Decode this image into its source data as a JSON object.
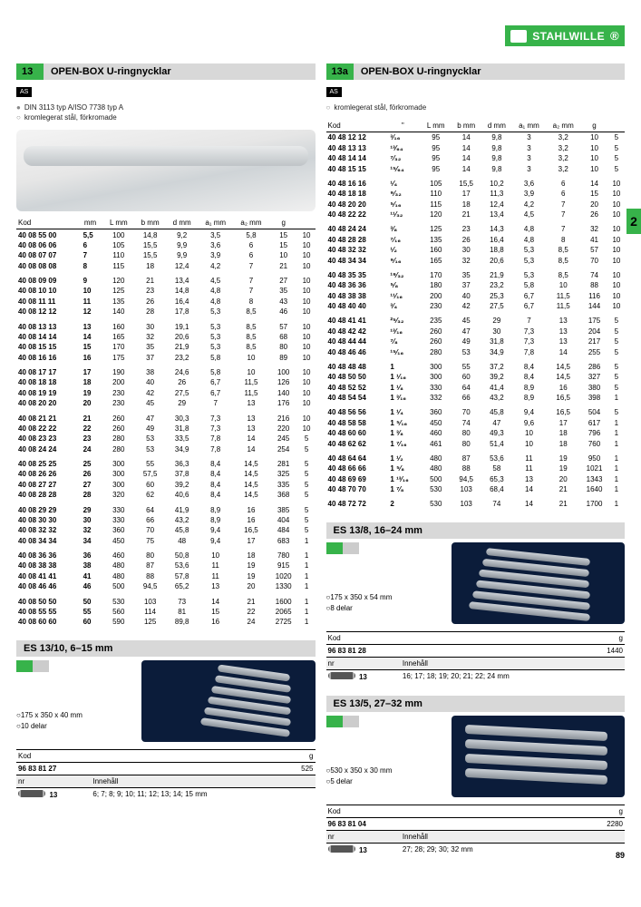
{
  "page_number": "89",
  "tab": "2",
  "brand": "STAHLWILLE",
  "left": {
    "tag": "13",
    "title": "OPEN-BOX U-ringnycklar",
    "notes": [
      "DIN 3113 typ A/ISO 7738 typ A",
      "kromlegerat stål, förkromade"
    ],
    "headers": [
      "Kod",
      "mm",
      "L mm",
      "b mm",
      "d mm",
      "a₁ mm",
      "a₂ mm",
      "g",
      ""
    ],
    "groups": [
      [
        [
          "40 08 55 00",
          "5,5",
          "100",
          "14,8",
          "9,2",
          "3,5",
          "5,8",
          "15",
          "10"
        ],
        [
          "40 08 06 06",
          "6",
          "105",
          "15,5",
          "9,9",
          "3,6",
          "6",
          "15",
          "10"
        ],
        [
          "40 08 07 07",
          "7",
          "110",
          "15,5",
          "9,9",
          "3,9",
          "6",
          "10",
          "10"
        ],
        [
          "40 08 08 08",
          "8",
          "115",
          "18",
          "12,4",
          "4,2",
          "7",
          "21",
          "10"
        ]
      ],
      [
        [
          "40 08 09 09",
          "9",
          "120",
          "21",
          "13,4",
          "4,5",
          "7",
          "27",
          "10"
        ],
        [
          "40 08 10 10",
          "10",
          "125",
          "23",
          "14,8",
          "4,8",
          "7",
          "35",
          "10"
        ],
        [
          "40 08 11 11",
          "11",
          "135",
          "26",
          "16,4",
          "4,8",
          "8",
          "43",
          "10"
        ],
        [
          "40 08 12 12",
          "12",
          "140",
          "28",
          "17,8",
          "5,3",
          "8,5",
          "46",
          "10"
        ]
      ],
      [
        [
          "40 08 13 13",
          "13",
          "160",
          "30",
          "19,1",
          "5,3",
          "8,5",
          "57",
          "10"
        ],
        [
          "40 08 14 14",
          "14",
          "165",
          "32",
          "20,6",
          "5,3",
          "8,5",
          "68",
          "10"
        ],
        [
          "40 08 15 15",
          "15",
          "170",
          "35",
          "21,9",
          "5,3",
          "8,5",
          "80",
          "10"
        ],
        [
          "40 08 16 16",
          "16",
          "175",
          "37",
          "23,2",
          "5,8",
          "10",
          "89",
          "10"
        ]
      ],
      [
        [
          "40 08 17 17",
          "17",
          "190",
          "38",
          "24,6",
          "5,8",
          "10",
          "100",
          "10"
        ],
        [
          "40 08 18 18",
          "18",
          "200",
          "40",
          "26",
          "6,7",
          "11,5",
          "126",
          "10"
        ],
        [
          "40 08 19 19",
          "19",
          "230",
          "42",
          "27,5",
          "6,7",
          "11,5",
          "140",
          "10"
        ],
        [
          "40 08 20 20",
          "20",
          "230",
          "45",
          "29",
          "7",
          "13",
          "176",
          "10"
        ]
      ],
      [
        [
          "40 08 21 21",
          "21",
          "260",
          "47",
          "30,3",
          "7,3",
          "13",
          "216",
          "10"
        ],
        [
          "40 08 22 22",
          "22",
          "260",
          "49",
          "31,8",
          "7,3",
          "13",
          "220",
          "10"
        ],
        [
          "40 08 23 23",
          "23",
          "280",
          "53",
          "33,5",
          "7,8",
          "14",
          "245",
          "5"
        ],
        [
          "40 08 24 24",
          "24",
          "280",
          "53",
          "34,9",
          "7,8",
          "14",
          "254",
          "5"
        ]
      ],
      [
        [
          "40 08 25 25",
          "25",
          "300",
          "55",
          "36,3",
          "8,4",
          "14,5",
          "281",
          "5"
        ],
        [
          "40 08 26 26",
          "26",
          "300",
          "57,5",
          "37,8",
          "8,4",
          "14,5",
          "325",
          "5"
        ],
        [
          "40 08 27 27",
          "27",
          "300",
          "60",
          "39,2",
          "8,4",
          "14,5",
          "335",
          "5"
        ],
        [
          "40 08 28 28",
          "28",
          "320",
          "62",
          "40,6",
          "8,4",
          "14,5",
          "368",
          "5"
        ]
      ],
      [
        [
          "40 08 29 29",
          "29",
          "330",
          "64",
          "41,9",
          "8,9",
          "16",
          "385",
          "5"
        ],
        [
          "40 08 30 30",
          "30",
          "330",
          "66",
          "43,2",
          "8,9",
          "16",
          "404",
          "5"
        ],
        [
          "40 08 32 32",
          "32",
          "360",
          "70",
          "45,8",
          "9,4",
          "16,5",
          "484",
          "5"
        ],
        [
          "40 08 34 34",
          "34",
          "450",
          "75",
          "48",
          "9,4",
          "17",
          "683",
          "1"
        ]
      ],
      [
        [
          "40 08 36 36",
          "36",
          "460",
          "80",
          "50,8",
          "10",
          "18",
          "780",
          "1"
        ],
        [
          "40 08 38 38",
          "38",
          "480",
          "87",
          "53,6",
          "11",
          "19",
          "915",
          "1"
        ],
        [
          "40 08 41 41",
          "41",
          "480",
          "88",
          "57,8",
          "11",
          "19",
          "1020",
          "1"
        ],
        [
          "40 08 46 46",
          "46",
          "500",
          "94,5",
          "65,2",
          "13",
          "20",
          "1330",
          "1"
        ]
      ],
      [
        [
          "40 08 50 50",
          "50",
          "530",
          "103",
          "73",
          "14",
          "21",
          "1600",
          "1"
        ],
        [
          "40 08 55 55",
          "55",
          "560",
          "114",
          "81",
          "15",
          "22",
          "2065",
          "1"
        ],
        [
          "40 08 60 60",
          "60",
          "590",
          "125",
          "89,8",
          "16",
          "24",
          "2725",
          "1"
        ]
      ]
    ]
  },
  "right": {
    "tag": "13a",
    "title": "OPEN-BOX U-ringnycklar",
    "notes": [
      "kromlegerat stål, förkromade"
    ],
    "headers": [
      "Kod",
      "\"",
      "L mm",
      "b mm",
      "d mm",
      "a₁ mm",
      "a₂ mm",
      "g",
      ""
    ],
    "groups": [
      [
        [
          "40 48 12 12",
          "³⁄₁₆",
          "95",
          "14",
          "9,8",
          "3",
          "3,2",
          "10",
          "5"
        ],
        [
          "40 48 13 13",
          "¹³⁄₆₄",
          "95",
          "14",
          "9,8",
          "3",
          "3,2",
          "10",
          "5"
        ],
        [
          "40 48 14 14",
          "⁷⁄₃₂",
          "95",
          "14",
          "9,8",
          "3",
          "3,2",
          "10",
          "5"
        ],
        [
          "40 48 15 15",
          "¹⁵⁄₆₄",
          "95",
          "14",
          "9,8",
          "3",
          "3,2",
          "10",
          "5"
        ]
      ],
      [
        [
          "40 48 16 16",
          "¹⁄₄",
          "105",
          "15,5",
          "10,2",
          "3,6",
          "6",
          "14",
          "10"
        ],
        [
          "40 48 18 18",
          "⁹⁄₃₂",
          "110",
          "17",
          "11,3",
          "3,9",
          "6",
          "15",
          "10"
        ],
        [
          "40 48 20 20",
          "⁵⁄₁₆",
          "115",
          "18",
          "12,4",
          "4,2",
          "7",
          "20",
          "10"
        ],
        [
          "40 48 22 22",
          "¹¹⁄₃₂",
          "120",
          "21",
          "13,4",
          "4,5",
          "7",
          "26",
          "10"
        ]
      ],
      [
        [
          "40 48 24 24",
          "³⁄₈",
          "125",
          "23",
          "14,3",
          "4,8",
          "7",
          "32",
          "10"
        ],
        [
          "40 48 28 28",
          "⁷⁄₁₆",
          "135",
          "26",
          "16,4",
          "4,8",
          "8",
          "41",
          "10"
        ],
        [
          "40 48 32 32",
          "¹⁄₂",
          "160",
          "30",
          "18,8",
          "5,3",
          "8,5",
          "57",
          "10"
        ],
        [
          "40 48 34 34",
          "⁹⁄₁₆",
          "165",
          "32",
          "20,6",
          "5,3",
          "8,5",
          "70",
          "10"
        ]
      ],
      [
        [
          "40 48 35 35",
          "¹⁹⁄₃₂",
          "170",
          "35",
          "21,9",
          "5,3",
          "8,5",
          "74",
          "10"
        ],
        [
          "40 48 36 36",
          "⁵⁄₈",
          "180",
          "37",
          "23,2",
          "5,8",
          "10",
          "88",
          "10"
        ],
        [
          "40 48 38 38",
          "¹¹⁄₁₆",
          "200",
          "40",
          "25,3",
          "6,7",
          "11,5",
          "116",
          "10"
        ],
        [
          "40 48 40 40",
          "³⁄₄",
          "230",
          "42",
          "27,5",
          "6,7",
          "11,5",
          "144",
          "10"
        ]
      ],
      [
        [
          "40 48 41 41",
          "²⁵⁄₃₂",
          "235",
          "45",
          "29",
          "7",
          "13",
          "175",
          "5"
        ],
        [
          "40 48 42 42",
          "¹³⁄₁₆",
          "260",
          "47",
          "30",
          "7,3",
          "13",
          "204",
          "5"
        ],
        [
          "40 48 44 44",
          "⁷⁄₈",
          "260",
          "49",
          "31,8",
          "7,3",
          "13",
          "217",
          "5"
        ],
        [
          "40 48 46 46",
          "¹⁵⁄₁₆",
          "280",
          "53",
          "34,9",
          "7,8",
          "14",
          "255",
          "5"
        ]
      ],
      [
        [
          "40 48 48 48",
          "1",
          "300",
          "55",
          "37,2",
          "8,4",
          "14,5",
          "286",
          "5"
        ],
        [
          "40 48 50 50",
          "1 ¹⁄₁₆",
          "300",
          "60",
          "39,2",
          "8,4",
          "14,5",
          "327",
          "5"
        ],
        [
          "40 48 52 52",
          "1 ¹⁄₈",
          "330",
          "64",
          "41,4",
          "8,9",
          "16",
          "380",
          "5"
        ],
        [
          "40 48 54 54",
          "1 ³⁄₁₆",
          "332",
          "66",
          "43,2",
          "8,9",
          "16,5",
          "398",
          "1"
        ]
      ],
      [
        [
          "40 48 56 56",
          "1 ¹⁄₄",
          "360",
          "70",
          "45,8",
          "9,4",
          "16,5",
          "504",
          "5"
        ],
        [
          "40 48 58 58",
          "1 ⁵⁄₁₆",
          "450",
          "74",
          "47",
          "9,6",
          "17",
          "617",
          "1"
        ],
        [
          "40 48 60 60",
          "1 ³⁄₈",
          "460",
          "80",
          "49,3",
          "10",
          "18",
          "796",
          "1"
        ],
        [
          "40 48 62 62",
          "1 ⁷⁄₁₆",
          "461",
          "80",
          "51,4",
          "10",
          "18",
          "760",
          "1"
        ]
      ],
      [
        [
          "40 48 64 64",
          "1 ¹⁄₂",
          "480",
          "87",
          "53,6",
          "11",
          "19",
          "950",
          "1"
        ],
        [
          "40 48 66 66",
          "1 ⁵⁄₈",
          "480",
          "88",
          "58",
          "11",
          "19",
          "1021",
          "1"
        ],
        [
          "40 48 69 69",
          "1 ¹³⁄₁₆",
          "500",
          "94,5",
          "65,3",
          "13",
          "20",
          "1343",
          "1"
        ],
        [
          "40 48 70 70",
          "1 ⁷⁄₈",
          "530",
          "103",
          "68,4",
          "14",
          "21",
          "1640",
          "1"
        ]
      ],
      [
        [
          "40 48 72 72",
          "2",
          "530",
          "103",
          "74",
          "14",
          "21",
          "1700",
          "1"
        ]
      ]
    ]
  },
  "set1": {
    "title": "ES 13/10, 6–15 mm",
    "dims": "175 x 350 x 40 mm",
    "count": "10 delar",
    "kod": "96 83 81 27",
    "g": "525",
    "nr": "13",
    "contents": "6; 7; 8; 9; 10; 11; 12; 13; 14; 15 mm"
  },
  "set2": {
    "title": "ES 13/8, 16–24 mm",
    "dims": "175 x 350 x 54 mm",
    "count": "8 delar",
    "kod": "96 83 81 28",
    "g": "1440",
    "nr": "13",
    "contents": "16; 17; 18; 19; 20; 21; 22; 24 mm"
  },
  "set3": {
    "title": "ES 13/5, 27–32 mm",
    "dims": "530 x 350 x 30 mm",
    "count": "5 delar",
    "kod": "96 83 81 04",
    "g": "2280",
    "nr": "13",
    "contents": "27; 28; 29; 30; 32 mm"
  },
  "labels": {
    "kod": "Kod",
    "g": "g",
    "nr": "nr",
    "innehall": "Innehåll"
  }
}
